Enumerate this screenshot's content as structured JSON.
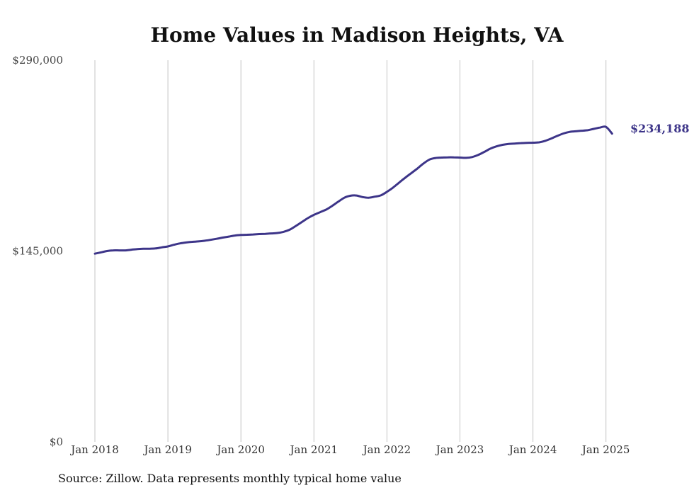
{
  "colors": {
    "line": "#3d3589",
    "grid": "#c4c4c4"
  },
  "source_note": "Source: Zillow. Data represents monthly typical home value",
  "chart_data": {
    "type": "line",
    "title": "Home Values in Madison Heights, VA",
    "xlabel": "",
    "ylabel": "",
    "ylim": [
      0,
      290000
    ],
    "y_ticks": [
      {
        "value": 0,
        "label": "$0"
      },
      {
        "value": 145000,
        "label": "$145,000"
      },
      {
        "value": 290000,
        "label": "$290,000"
      }
    ],
    "x_ticks": [
      {
        "value": "2018-01",
        "label": "Jan 2018"
      },
      {
        "value": "2019-01",
        "label": "Jan 2019"
      },
      {
        "value": "2020-01",
        "label": "Jan 2020"
      },
      {
        "value": "2021-01",
        "label": "Jan 2021"
      },
      {
        "value": "2022-01",
        "label": "Jan 2022"
      },
      {
        "value": "2023-01",
        "label": "Jan 2023"
      },
      {
        "value": "2024-01",
        "label": "Jan 2024"
      },
      {
        "value": "2025-01",
        "label": "Jan 2025"
      }
    ],
    "x_gridlines": true,
    "end_label": "$234,188",
    "series": [
      {
        "x": [
          "2018-01",
          "2018-02",
          "2018-03",
          "2018-04",
          "2018-05",
          "2018-06",
          "2018-07",
          "2018-08",
          "2018-09",
          "2018-10",
          "2018-11",
          "2018-12",
          "2019-01",
          "2019-02",
          "2019-03",
          "2019-04",
          "2019-05",
          "2019-06",
          "2019-07",
          "2019-08",
          "2019-09",
          "2019-10",
          "2019-11",
          "2019-12",
          "2020-01",
          "2020-02",
          "2020-03",
          "2020-04",
          "2020-05",
          "2020-06",
          "2020-07",
          "2020-08",
          "2020-09",
          "2020-10",
          "2020-11",
          "2020-12",
          "2021-01",
          "2021-02",
          "2021-03",
          "2021-04",
          "2021-05",
          "2021-06",
          "2021-07",
          "2021-08",
          "2021-09",
          "2021-10",
          "2021-11",
          "2021-12",
          "2022-01",
          "2022-02",
          "2022-03",
          "2022-04",
          "2022-05",
          "2022-06",
          "2022-07",
          "2022-08",
          "2022-09",
          "2022-10",
          "2022-11",
          "2022-12",
          "2023-01",
          "2023-02",
          "2023-03",
          "2023-04",
          "2023-05",
          "2023-06",
          "2023-07",
          "2023-08",
          "2023-09",
          "2023-10",
          "2023-11",
          "2023-12",
          "2024-01",
          "2024-02",
          "2024-03",
          "2024-04",
          "2024-05",
          "2024-06",
          "2024-07",
          "2024-08",
          "2024-09",
          "2024-10",
          "2024-11",
          "2024-12",
          "2025-01",
          "2025-02"
        ],
        "values": [
          143000,
          144000,
          145000,
          145500,
          145500,
          145500,
          146000,
          146500,
          146700,
          146800,
          147000,
          147800,
          148500,
          149800,
          150800,
          151500,
          152000,
          152300,
          152800,
          153500,
          154300,
          155200,
          156000,
          156800,
          157200,
          157400,
          157600,
          157900,
          158100,
          158400,
          158700,
          159600,
          161200,
          164000,
          167000,
          170000,
          172500,
          174500,
          176500,
          179300,
          182500,
          185500,
          187000,
          187200,
          186000,
          185500,
          186300,
          187300,
          190000,
          193200,
          197000,
          200700,
          204200,
          207700,
          211500,
          214500,
          215700,
          216000,
          216200,
          216200,
          216000,
          215800,
          216400,
          218000,
          220300,
          222800,
          224500,
          225700,
          226400,
          226700,
          227000,
          227200,
          227300,
          227600,
          228700,
          230500,
          232500,
          234300,
          235500,
          236000,
          236400,
          236800,
          237800,
          238800,
          239300,
          234188
        ]
      }
    ]
  }
}
